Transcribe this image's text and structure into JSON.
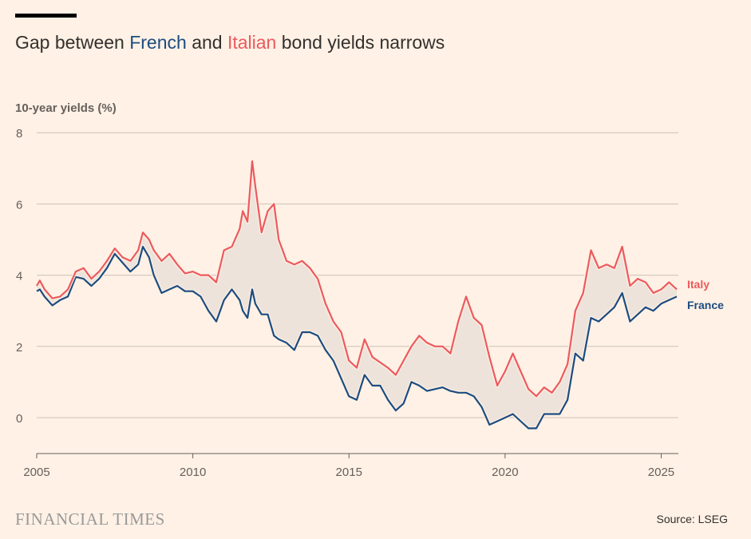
{
  "title": {
    "pre": "Gap between ",
    "french": "French",
    "mid": " and ",
    "italian": "Italian",
    "post": " bond yields narrows"
  },
  "subtitle": "10-year yields (%)",
  "footer": {
    "logo": "FINANCIAL TIMES",
    "source": "Source: LSEG"
  },
  "colors": {
    "background": "#FFF1E5",
    "italy": "#EB5A5E",
    "france": "#1C4C80",
    "gap_fill": "#EEE3DA",
    "grid": "#CCC1B7"
  },
  "chart_data": {
    "type": "line",
    "title": "Gap between French and Italian bond yields narrows",
    "ylabel": "10-year yields (%)",
    "xlim": [
      2005,
      2025.6
    ],
    "ylim": [
      -1,
      8
    ],
    "yticks": [
      0,
      2,
      4,
      6,
      8
    ],
    "xticks": [
      2005,
      2010,
      2015,
      2020,
      2025
    ],
    "grid": true,
    "gap_shaded": true,
    "legend": "right end labels",
    "series": [
      {
        "name": "Italy",
        "data": [
          [
            2005.0,
            3.7
          ],
          [
            2005.1,
            3.85
          ],
          [
            2005.25,
            3.6
          ],
          [
            2005.5,
            3.35
          ],
          [
            2005.75,
            3.4
          ],
          [
            2006.0,
            3.6
          ],
          [
            2006.25,
            4.1
          ],
          [
            2006.5,
            4.2
          ],
          [
            2006.75,
            3.9
          ],
          [
            2007.0,
            4.1
          ],
          [
            2007.25,
            4.4
          ],
          [
            2007.5,
            4.75
          ],
          [
            2007.75,
            4.5
          ],
          [
            2008.0,
            4.4
          ],
          [
            2008.25,
            4.7
          ],
          [
            2008.4,
            5.2
          ],
          [
            2008.6,
            5.0
          ],
          [
            2008.75,
            4.7
          ],
          [
            2009.0,
            4.4
          ],
          [
            2009.25,
            4.6
          ],
          [
            2009.5,
            4.3
          ],
          [
            2009.75,
            4.05
          ],
          [
            2010.0,
            4.1
          ],
          [
            2010.25,
            4.0
          ],
          [
            2010.5,
            4.0
          ],
          [
            2010.75,
            3.8
          ],
          [
            2011.0,
            4.7
          ],
          [
            2011.25,
            4.8
          ],
          [
            2011.5,
            5.3
          ],
          [
            2011.6,
            5.8
          ],
          [
            2011.75,
            5.5
          ],
          [
            2011.9,
            7.2
          ],
          [
            2012.0,
            6.5
          ],
          [
            2012.2,
            5.2
          ],
          [
            2012.4,
            5.8
          ],
          [
            2012.6,
            6.0
          ],
          [
            2012.75,
            5.0
          ],
          [
            2013.0,
            4.4
          ],
          [
            2013.25,
            4.3
          ],
          [
            2013.5,
            4.4
          ],
          [
            2013.75,
            4.2
          ],
          [
            2014.0,
            3.9
          ],
          [
            2014.25,
            3.2
          ],
          [
            2014.5,
            2.7
          ],
          [
            2014.75,
            2.4
          ],
          [
            2015.0,
            1.6
          ],
          [
            2015.25,
            1.4
          ],
          [
            2015.5,
            2.2
          ],
          [
            2015.75,
            1.7
          ],
          [
            2016.0,
            1.55
          ],
          [
            2016.25,
            1.4
          ],
          [
            2016.5,
            1.2
          ],
          [
            2016.75,
            1.6
          ],
          [
            2017.0,
            2.0
          ],
          [
            2017.25,
            2.3
          ],
          [
            2017.5,
            2.1
          ],
          [
            2017.75,
            2.0
          ],
          [
            2018.0,
            2.0
          ],
          [
            2018.25,
            1.8
          ],
          [
            2018.5,
            2.7
          ],
          [
            2018.75,
            3.4
          ],
          [
            2019.0,
            2.8
          ],
          [
            2019.25,
            2.6
          ],
          [
            2019.5,
            1.7
          ],
          [
            2019.75,
            0.9
          ],
          [
            2020.0,
            1.3
          ],
          [
            2020.25,
            1.8
          ],
          [
            2020.5,
            1.3
          ],
          [
            2020.75,
            0.8
          ],
          [
            2021.0,
            0.6
          ],
          [
            2021.25,
            0.85
          ],
          [
            2021.5,
            0.7
          ],
          [
            2021.75,
            1.0
          ],
          [
            2022.0,
            1.5
          ],
          [
            2022.25,
            3.0
          ],
          [
            2022.5,
            3.5
          ],
          [
            2022.75,
            4.7
          ],
          [
            2023.0,
            4.2
          ],
          [
            2023.25,
            4.3
          ],
          [
            2023.5,
            4.2
          ],
          [
            2023.75,
            4.8
          ],
          [
            2024.0,
            3.7
          ],
          [
            2024.25,
            3.9
          ],
          [
            2024.5,
            3.8
          ],
          [
            2024.75,
            3.5
          ],
          [
            2025.0,
            3.6
          ],
          [
            2025.25,
            3.8
          ],
          [
            2025.5,
            3.6
          ]
        ]
      },
      {
        "name": "France",
        "data": [
          [
            2005.0,
            3.55
          ],
          [
            2005.1,
            3.6
          ],
          [
            2005.25,
            3.4
          ],
          [
            2005.5,
            3.15
          ],
          [
            2005.75,
            3.3
          ],
          [
            2006.0,
            3.4
          ],
          [
            2006.25,
            3.95
          ],
          [
            2006.5,
            3.9
          ],
          [
            2006.75,
            3.7
          ],
          [
            2007.0,
            3.9
          ],
          [
            2007.25,
            4.2
          ],
          [
            2007.5,
            4.6
          ],
          [
            2007.75,
            4.35
          ],
          [
            2008.0,
            4.1
          ],
          [
            2008.25,
            4.3
          ],
          [
            2008.4,
            4.8
          ],
          [
            2008.6,
            4.5
          ],
          [
            2008.75,
            4.0
          ],
          [
            2009.0,
            3.5
          ],
          [
            2009.25,
            3.6
          ],
          [
            2009.5,
            3.7
          ],
          [
            2009.75,
            3.55
          ],
          [
            2010.0,
            3.55
          ],
          [
            2010.25,
            3.4
          ],
          [
            2010.5,
            3.0
          ],
          [
            2010.75,
            2.7
          ],
          [
            2011.0,
            3.3
          ],
          [
            2011.25,
            3.6
          ],
          [
            2011.5,
            3.3
          ],
          [
            2011.6,
            3.0
          ],
          [
            2011.75,
            2.8
          ],
          [
            2011.9,
            3.6
          ],
          [
            2012.0,
            3.2
          ],
          [
            2012.2,
            2.9
          ],
          [
            2012.4,
            2.9
          ],
          [
            2012.6,
            2.3
          ],
          [
            2012.75,
            2.2
          ],
          [
            2013.0,
            2.1
          ],
          [
            2013.25,
            1.9
          ],
          [
            2013.5,
            2.4
          ],
          [
            2013.75,
            2.4
          ],
          [
            2014.0,
            2.3
          ],
          [
            2014.25,
            1.9
          ],
          [
            2014.5,
            1.6
          ],
          [
            2014.75,
            1.1
          ],
          [
            2015.0,
            0.6
          ],
          [
            2015.25,
            0.5
          ],
          [
            2015.5,
            1.2
          ],
          [
            2015.75,
            0.9
          ],
          [
            2016.0,
            0.9
          ],
          [
            2016.25,
            0.5
          ],
          [
            2016.5,
            0.2
          ],
          [
            2016.75,
            0.4
          ],
          [
            2017.0,
            1.0
          ],
          [
            2017.25,
            0.9
          ],
          [
            2017.5,
            0.75
          ],
          [
            2017.75,
            0.8
          ],
          [
            2018.0,
            0.85
          ],
          [
            2018.25,
            0.75
          ],
          [
            2018.5,
            0.7
          ],
          [
            2018.75,
            0.7
          ],
          [
            2019.0,
            0.6
          ],
          [
            2019.25,
            0.3
          ],
          [
            2019.5,
            -0.2
          ],
          [
            2019.75,
            -0.1
          ],
          [
            2020.0,
            0.0
          ],
          [
            2020.25,
            0.1
          ],
          [
            2020.5,
            -0.1
          ],
          [
            2020.75,
            -0.3
          ],
          [
            2021.0,
            -0.3
          ],
          [
            2021.25,
            0.1
          ],
          [
            2021.5,
            0.1
          ],
          [
            2021.75,
            0.1
          ],
          [
            2022.0,
            0.5
          ],
          [
            2022.25,
            1.8
          ],
          [
            2022.5,
            1.6
          ],
          [
            2022.75,
            2.8
          ],
          [
            2023.0,
            2.7
          ],
          [
            2023.25,
            2.9
          ],
          [
            2023.5,
            3.1
          ],
          [
            2023.75,
            3.5
          ],
          [
            2024.0,
            2.7
          ],
          [
            2024.25,
            2.9
          ],
          [
            2024.5,
            3.1
          ],
          [
            2024.75,
            3.0
          ],
          [
            2025.0,
            3.2
          ],
          [
            2025.25,
            3.3
          ],
          [
            2025.5,
            3.4
          ]
        ]
      }
    ]
  }
}
